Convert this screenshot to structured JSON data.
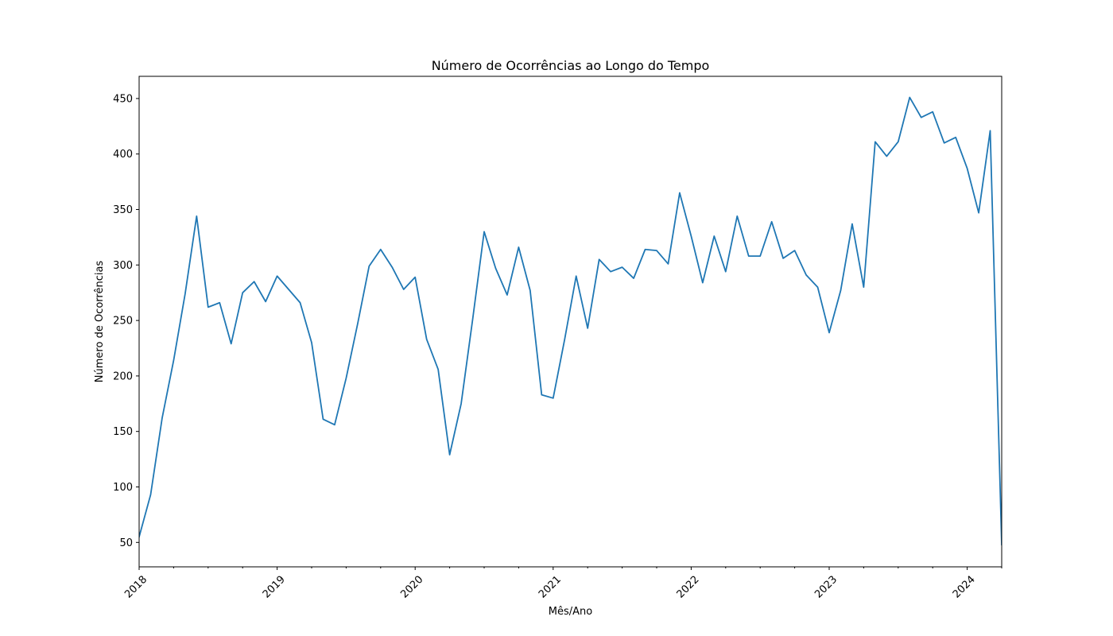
{
  "chart_data": {
    "type": "line",
    "title": "Número de Ocorrências ao Longo do Tempo",
    "xlabel": "Mês/Ano",
    "ylabel": "Número de Ocorrências",
    "xlim": [
      "2018-01",
      "2024-04"
    ],
    "ylim": [
      28,
      470
    ],
    "grid": false,
    "legend": "none",
    "yticks": [
      50,
      100,
      150,
      200,
      250,
      300,
      350,
      400,
      450
    ],
    "xticks": [
      "2018",
      "2019",
      "2020",
      "2021",
      "2022",
      "2023",
      "2024"
    ],
    "series": [
      {
        "color": "#1f77b4",
        "x": [
          "2018-01",
          "2018-02",
          "2018-03",
          "2018-04",
          "2018-05",
          "2018-06",
          "2018-07",
          "2018-08",
          "2018-09",
          "2018-10",
          "2018-11",
          "2018-12",
          "2019-01",
          "2019-02",
          "2019-03",
          "2019-04",
          "2019-05",
          "2019-06",
          "2019-07",
          "2019-08",
          "2019-09",
          "2019-10",
          "2019-11",
          "2019-12",
          "2020-01",
          "2020-02",
          "2020-03",
          "2020-04",
          "2020-05",
          "2020-06",
          "2020-07",
          "2020-08",
          "2020-09",
          "2020-10",
          "2020-11",
          "2020-12",
          "2021-01",
          "2021-02",
          "2021-03",
          "2021-04",
          "2021-05",
          "2021-06",
          "2021-07",
          "2021-08",
          "2021-09",
          "2021-10",
          "2021-11",
          "2021-12",
          "2022-01",
          "2022-02",
          "2022-03",
          "2022-04",
          "2022-05",
          "2022-06",
          "2022-07",
          "2022-08",
          "2022-09",
          "2022-10",
          "2022-11",
          "2022-12",
          "2023-01",
          "2023-02",
          "2023-03",
          "2023-04",
          "2023-05",
          "2023-06",
          "2023-07",
          "2023-08",
          "2023-09",
          "2023-10",
          "2023-11",
          "2023-12",
          "2024-01",
          "2024-02",
          "2024-03",
          "2024-04"
        ],
        "y": [
          55,
          93,
          162,
          214,
          274,
          344,
          262,
          266,
          229,
          275,
          285,
          267,
          290,
          278,
          266,
          230,
          161,
          156,
          198,
          247,
          299,
          314,
          298,
          278,
          289,
          233,
          206,
          129,
          175,
          251,
          330,
          297,
          273,
          316,
          277,
          183,
          180,
          233,
          290,
          243,
          305,
          294,
          298,
          288,
          314,
          313,
          301,
          365,
          326,
          284,
          326,
          294,
          344,
          308,
          308,
          339,
          306,
          313,
          291,
          280,
          239,
          277,
          337,
          280,
          411,
          398,
          411,
          451,
          433,
          438,
          410,
          415,
          387,
          347,
          421,
          48
        ]
      }
    ]
  }
}
